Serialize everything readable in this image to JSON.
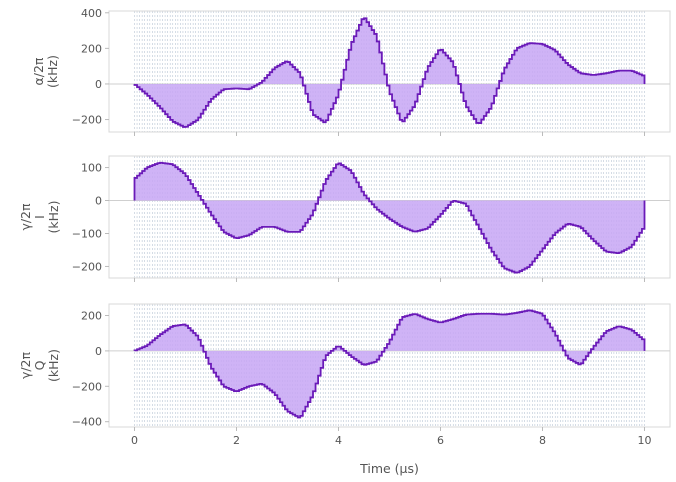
{
  "chart_data": [
    {
      "type": "area",
      "ylabel_lines": [
        "α/2π",
        "(kHz)"
      ],
      "ylim": [
        -270,
        410
      ],
      "yticks": [
        -200,
        0,
        200,
        400
      ],
      "xlim": [
        -0.5,
        10.5
      ],
      "x": [
        0,
        0.25,
        0.5,
        0.75,
        1.0,
        1.25,
        1.5,
        1.75,
        2.0,
        2.25,
        2.5,
        2.75,
        3.0,
        3.25,
        3.5,
        3.75,
        4.0,
        4.25,
        4.5,
        4.75,
        5.0,
        5.25,
        5.5,
        5.75,
        6.0,
        6.25,
        6.5,
        6.75,
        7.0,
        7.25,
        7.5,
        7.75,
        8.0,
        8.25,
        8.5,
        8.75,
        9.0,
        9.25,
        9.5,
        9.75,
        10.0
      ],
      "series": [
        {
          "values": [
            0,
            -60,
            -130,
            -210,
            -245,
            -200,
            -90,
            -30,
            -25,
            -30,
            10,
            90,
            130,
            60,
            -170,
            -220,
            -60,
            220,
            380,
            270,
            -40,
            -220,
            -120,
            90,
            200,
            120,
            -120,
            -230,
            -130,
            80,
            200,
            230,
            225,
            190,
            110,
            60,
            50,
            60,
            75,
            75,
            45
          ]
        }
      ]
    },
    {
      "type": "area",
      "ylabel_lines": [
        "γ/2π",
        "I",
        "(kHz)"
      ],
      "ylim": [
        -235,
        135
      ],
      "yticks": [
        -200,
        -100,
        0,
        100
      ],
      "xlim": [
        -0.5,
        10.5
      ],
      "x": [
        0,
        0.25,
        0.5,
        0.75,
        1.0,
        1.25,
        1.5,
        1.75,
        2.0,
        2.25,
        2.5,
        2.75,
        3.0,
        3.25,
        3.5,
        3.75,
        4.0,
        4.25,
        4.5,
        4.75,
        5.0,
        5.25,
        5.5,
        5.75,
        6.0,
        6.25,
        6.5,
        6.75,
        7.0,
        7.25,
        7.5,
        7.75,
        8.0,
        8.25,
        8.5,
        8.75,
        9.0,
        9.25,
        9.5,
        9.75,
        10.0
      ],
      "series": [
        {
          "values": [
            65,
            100,
            115,
            110,
            80,
            20,
            -40,
            -95,
            -115,
            -105,
            -80,
            -80,
            -95,
            -95,
            -40,
            60,
            115,
            90,
            20,
            -25,
            -55,
            -80,
            -95,
            -85,
            -45,
            0,
            -10,
            -80,
            -150,
            -205,
            -220,
            -200,
            -150,
            -100,
            -70,
            -80,
            -120,
            -155,
            -160,
            -140,
            -80
          ]
        }
      ]
    },
    {
      "type": "area",
      "ylabel_lines": [
        "γ/2π",
        "Q",
        "(kHz)"
      ],
      "ylim": [
        -430,
        265
      ],
      "yticks": [
        -400,
        -200,
        0,
        200
      ],
      "xlim": [
        -0.5,
        10.5
      ],
      "x": [
        0,
        0.25,
        0.5,
        0.75,
        1.0,
        1.25,
        1.5,
        1.75,
        2.0,
        2.25,
        2.5,
        2.75,
        3.0,
        3.25,
        3.5,
        3.75,
        4.0,
        4.25,
        4.5,
        4.75,
        5.0,
        5.25,
        5.5,
        5.75,
        6.0,
        6.25,
        6.5,
        6.75,
        7.0,
        7.25,
        7.5,
        7.75,
        8.0,
        8.25,
        8.5,
        8.75,
        9.0,
        9.25,
        9.5,
        9.75,
        10.0
      ],
      "xlabel": "Time (μs)",
      "xticks": [
        0,
        2,
        4,
        6,
        8,
        10
      ],
      "series": [
        {
          "values": [
            0,
            30,
            90,
            140,
            150,
            80,
            -90,
            -200,
            -230,
            -200,
            -185,
            -240,
            -340,
            -380,
            -250,
            -30,
            30,
            -30,
            -80,
            -60,
            50,
            190,
            210,
            180,
            160,
            180,
            205,
            210,
            210,
            205,
            215,
            230,
            210,
            100,
            -40,
            -80,
            20,
            110,
            140,
            120,
            60
          ]
        }
      ]
    }
  ],
  "colors": {
    "line": "#6a1ab8",
    "fill": "#c7a6f5",
    "segment": "#b9c6d4",
    "frame": "#d8d8d8",
    "text": "#555555"
  }
}
